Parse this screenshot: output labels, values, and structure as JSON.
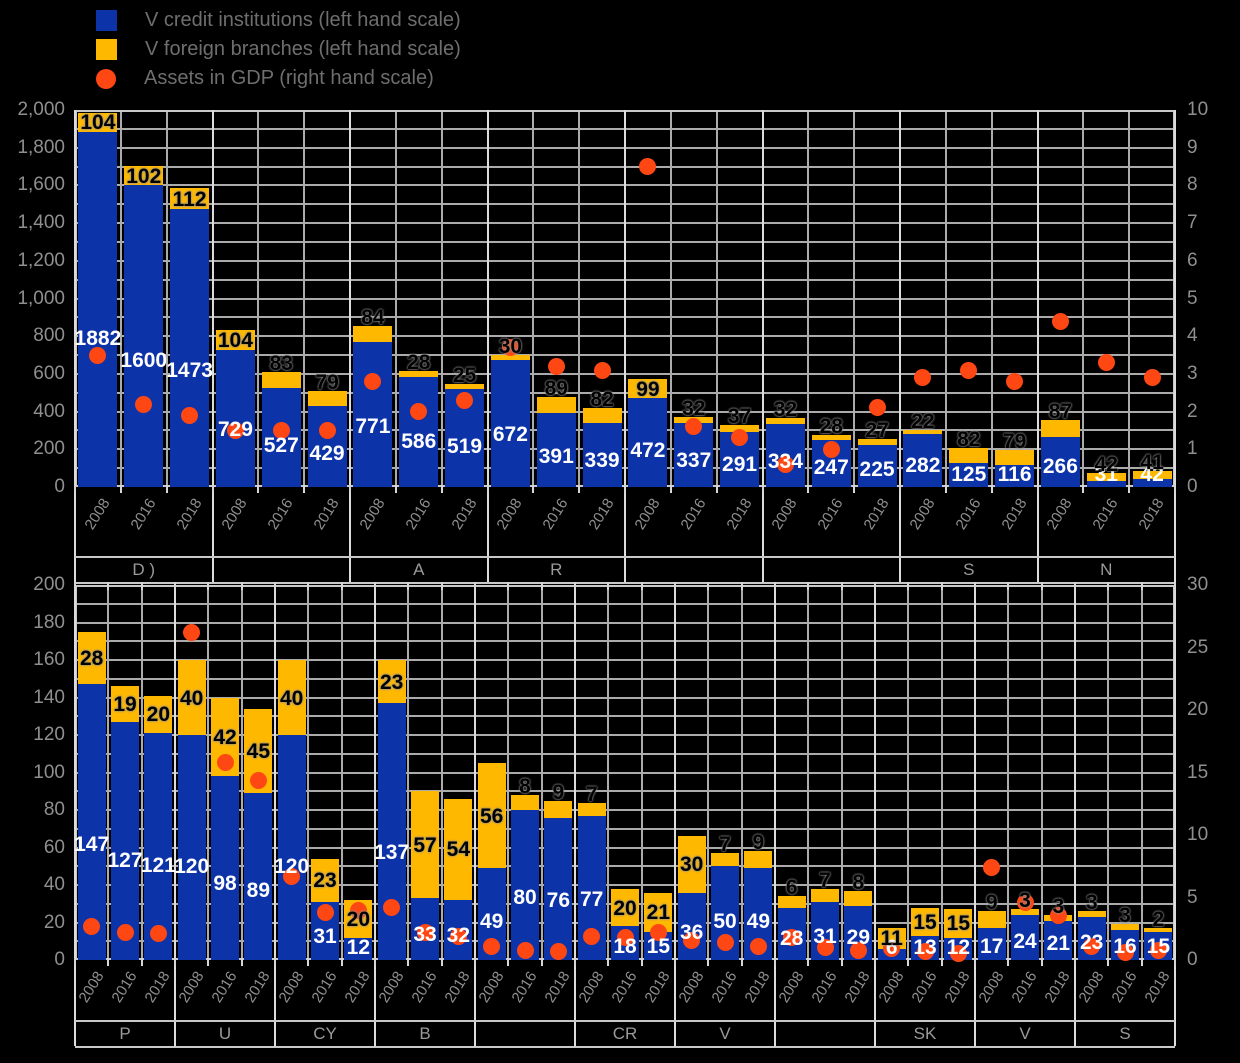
{
  "legend": {
    "items": [
      {
        "label": "V  credit institutions (left hand scale)",
        "swatch": "square",
        "color": "#0D33A8"
      },
      {
        "label": "V  foreign branches (left hand scale)",
        "swatch": "square",
        "color": "#FFB800"
      },
      {
        "label": "Assets in GDP (right hand scale)",
        "swatch": "circle",
        "color": "#FF4713"
      }
    ]
  },
  "colors": {
    "bar_blue": "#0D33A8",
    "bar_yellow": "#FFB800",
    "dot_orange": "#FF4713",
    "grid": "#ABABAB",
    "frame": "#C9C9C9",
    "axis_text": "#8F8F8F",
    "background": "#000000",
    "bar_label_white": "#FFFFFF",
    "branch_label_black": "#000000"
  },
  "chart_data": [
    {
      "type": "bar",
      "panel": "top",
      "subtype": "stacked-bar-with-scatter",
      "series": {
        "bar_blue": "credit institutions",
        "bar_yellow": "foreign branches",
        "dot": "Assets in GDP"
      },
      "years": [
        "2008",
        "2016",
        "2018"
      ],
      "left_axis": {
        "min": 0,
        "max": 2000,
        "label_step": 200,
        "grid_step": 100
      },
      "right_axis": {
        "min": 0,
        "max": 10,
        "label_step": 1
      },
      "grid": true,
      "groups": [
        {
          "label": "D )",
          "bars": [
            {
              "blue": 1882,
              "yellow": 104,
              "dot": 3.5
            },
            {
              "blue": 1600,
              "yellow": 102,
              "dot": 2.2
            },
            {
              "blue": 1473,
              "yellow": 112,
              "dot": 1.9
            }
          ]
        },
        {
          "label": "",
          "bars": [
            {
              "blue": 729,
              "yellow": 104,
              "dot": 1.5
            },
            {
              "blue": 527,
              "yellow": 83,
              "dot": 1.5
            },
            {
              "blue": 429,
              "yellow": 79,
              "dot": 1.5
            }
          ]
        },
        {
          "label": "A",
          "bars": [
            {
              "blue": 771,
              "yellow": 84,
              "dot": 2.8
            },
            {
              "blue": 586,
              "yellow": 28,
              "dot": 2.0
            },
            {
              "blue": 519,
              "yellow": 25,
              "dot": 2.3
            }
          ]
        },
        {
          "label": "R",
          "bars": [
            {
              "blue": 672,
              "yellow": 30,
              "dot": 3.7
            },
            {
              "blue": 391,
              "yellow": 89,
              "dot": 3.2
            },
            {
              "blue": 339,
              "yellow": 82,
              "dot": 3.1
            }
          ]
        },
        {
          "label": "",
          "bars": [
            {
              "blue": 472,
              "yellow": 99,
              "dot": 8.5
            },
            {
              "blue": 337,
              "yellow": 32,
              "dot": 1.6
            },
            {
              "blue": 291,
              "yellow": 37,
              "dot": 1.3
            }
          ]
        },
        {
          "label": "",
          "bars": [
            {
              "blue": 334,
              "yellow": 32,
              "dot": 0.6
            },
            {
              "blue": 247,
              "yellow": 28,
              "dot": 1.0
            },
            {
              "blue": 225,
              "yellow": 27,
              "dot": 2.1
            }
          ]
        },
        {
          "label": "S",
          "bars": [
            {
              "blue": 282,
              "yellow": 22,
              "dot": 2.9
            },
            {
              "blue": 125,
              "yellow": 82,
              "dot": 3.1
            },
            {
              "blue": 116,
              "yellow": 79,
              "dot": 2.8
            }
          ]
        },
        {
          "label": "N",
          "bars": [
            {
              "blue": 266,
              "yellow": 87,
              "dot": 4.4
            },
            {
              "blue": 31,
              "yellow": 42,
              "dot": 3.3
            },
            {
              "blue": 42,
              "yellow": 41,
              "dot": 2.9
            }
          ]
        }
      ]
    },
    {
      "type": "bar",
      "panel": "bottom",
      "subtype": "stacked-bar-with-scatter",
      "series": {
        "bar_blue": "credit institutions",
        "bar_yellow": "foreign branches",
        "dot": "Assets in GDP"
      },
      "years": [
        "2008",
        "2016",
        "2018"
      ],
      "left_axis": {
        "min": 0,
        "max": 200,
        "label_step": 20,
        "grid_step": 10
      },
      "right_axis": {
        "min": 0,
        "max": 30,
        "label_step": 5
      },
      "grid": true,
      "groups": [
        {
          "label": "P",
          "bars": [
            {
              "blue": 147,
              "yellow": 28,
              "dot": 2.7
            },
            {
              "blue": 127,
              "yellow": 19,
              "dot": 2.2
            },
            {
              "blue": 121,
              "yellow": 20,
              "dot": 2.1
            }
          ]
        },
        {
          "label": "U",
          "bars": [
            {
              "blue": 120,
              "yellow": 40,
              "dot": 26.2
            },
            {
              "blue": 98,
              "yellow": 42,
              "dot": 15.8
            },
            {
              "blue": 89,
              "yellow": 45,
              "dot": 14.4
            }
          ]
        },
        {
          "label": "CY",
          "bars": [
            {
              "blue": 120,
              "yellow": 40,
              "dot": 6.7
            },
            {
              "blue": 31,
              "yellow": 23,
              "dot": 3.8
            },
            {
              "blue": 12,
              "yellow": 20,
              "dot": 4.0
            }
          ]
        },
        {
          "label": "B",
          "bars": [
            {
              "blue": 137,
              "yellow": 23,
              "dot": 4.2
            },
            {
              "blue": 33,
              "yellow": 57,
              "dot": 2.2
            },
            {
              "blue": 32,
              "yellow": 54,
              "dot": 1.9
            }
          ]
        },
        {
          "label": "",
          "bars": [
            {
              "blue": 49,
              "yellow": 56,
              "dot": 1.1
            },
            {
              "blue": 80,
              "yellow": 8,
              "dot": 0.8
            },
            {
              "blue": 76,
              "yellow": 9,
              "dot": 0.7
            }
          ]
        },
        {
          "label": "CR",
          "bars": [
            {
              "blue": 77,
              "yellow": 7,
              "dot": 1.9
            },
            {
              "blue": 18,
              "yellow": 20,
              "dot": 1.8
            },
            {
              "blue": 15,
              "yellow": 21,
              "dot": 2.2
            }
          ]
        },
        {
          "label": "V",
          "bars": [
            {
              "blue": 36,
              "yellow": 30,
              "dot": 1.6
            },
            {
              "blue": 50,
              "yellow": 7,
              "dot": 1.4
            },
            {
              "blue": 49,
              "yellow": 9,
              "dot": 1.1
            }
          ]
        },
        {
          "label": "",
          "bars": [
            {
              "blue": 28,
              "yellow": 6,
              "dot": 1.8
            },
            {
              "blue": 31,
              "yellow": 7,
              "dot": 1.0
            },
            {
              "blue": 29,
              "yellow": 8,
              "dot": 0.8
            }
          ]
        },
        {
          "label": "SK",
          "bars": [
            {
              "blue": 6,
              "yellow": 11,
              "dot": 0.9
            },
            {
              "blue": 13,
              "yellow": 15,
              "dot": 0.7
            },
            {
              "blue": 12,
              "yellow": 15,
              "dot": 0.5
            }
          ]
        },
        {
          "label": "V",
          "bars": [
            {
              "blue": 17,
              "yellow": 9,
              "dot": 7.4
            },
            {
              "blue": 24,
              "yellow": 3,
              "dot": 4.6
            },
            {
              "blue": 21,
              "yellow": 3,
              "dot": 3.6
            }
          ]
        },
        {
          "label": "S",
          "bars": [
            {
              "blue": 23,
              "yellow": 3,
              "dot": 1.1
            },
            {
              "blue": 16,
              "yellow": 3,
              "dot": 0.6
            },
            {
              "blue": 15,
              "yellow": 2,
              "dot": 0.8
            }
          ]
        }
      ]
    }
  ]
}
